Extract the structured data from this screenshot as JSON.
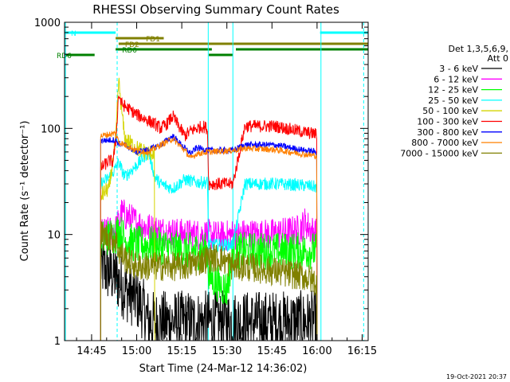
{
  "chart_data": {
    "type": "line",
    "title": "RHESSI Observing Summary Count Rates",
    "xlabel": "Start Time (24-Mar-12 14:36:02)",
    "ylabel": "Count Rate (s⁻¹ detector⁻¹)",
    "y_scale": "log",
    "ylim": [
      1,
      1000
    ],
    "xlim_minutes": [
      0,
      101
    ],
    "x_ticks": [
      {
        "label": "14:45",
        "t": 9
      },
      {
        "label": "15:00",
        "t": 24
      },
      {
        "label": "15:15",
        "t": 39
      },
      {
        "label": "15:30",
        "t": 54
      },
      {
        "label": "15:45",
        "t": 69
      },
      {
        "label": "16:00",
        "t": 84
      },
      {
        "label": "16:15",
        "t": 99
      }
    ],
    "y_ticks": [
      {
        "label": "1",
        "v": 1
      },
      {
        "label": "10",
        "v": 10
      },
      {
        "label": "100",
        "v": 100
      },
      {
        "label": "1000",
        "v": 1000
      }
    ],
    "legend_header": [
      "Det 1,3,5,6,9,",
      "Att 0"
    ],
    "legend_position": "right",
    "timestamp": "19-Oct-2021 20:37",
    "flags": [
      {
        "label": "N",
        "color": "#00ffff",
        "segments": [
          [
            0,
            17
          ],
          [
            85,
            101
          ]
        ],
        "level": 0
      },
      {
        "label": "FD1",
        "color": "#808000",
        "segments": [
          [
            17,
            33
          ]
        ],
        "level": 1
      },
      {
        "label": "FD2",
        "color": "#808000",
        "segments": [
          [
            18,
            101
          ]
        ],
        "level": 2
      },
      {
        "label": "RD0",
        "color": "#008000",
        "segments": [
          [
            17,
            49
          ],
          [
            57,
            101
          ]
        ],
        "level": 3
      },
      {
        "label": "RD6",
        "color": "#008000",
        "segments": [
          [
            0,
            10
          ],
          [
            48,
            56
          ]
        ],
        "level": 4
      }
    ],
    "vlines": [
      {
        "t": 17.5,
        "color": "#00ffff",
        "dashed": true
      },
      {
        "t": 99.5,
        "color": "#00ffff",
        "dashed": true
      },
      {
        "t": 0.3,
        "color": "#00ffff",
        "dashed": false
      },
      {
        "t": 85.3,
        "color": "#00ffff",
        "dashed": false
      },
      {
        "t": 47.8,
        "color": "#00ffff",
        "dashed": false
      },
      {
        "t": 56.0,
        "color": "#00ffff",
        "dashed": false
      }
    ],
    "series": [
      {
        "name": "3 - 6 keV",
        "color": "#000000",
        "noise": 0.3,
        "x": [
          12,
          17,
          20,
          24,
          26,
          28,
          35,
          40,
          48,
          52,
          56,
          60,
          70,
          80,
          84
        ],
        "y": [
          5,
          4,
          3,
          2.5,
          2,
          1.5,
          1.5,
          1.5,
          1.5,
          1.5,
          1.5,
          1.5,
          1.5,
          1.5,
          1.5
        ]
      },
      {
        "name": "6 - 12 keV",
        "color": "#ff00ff",
        "noise": 0.15,
        "x": [
          12,
          17,
          18,
          19,
          22,
          26,
          30,
          40,
          48,
          52,
          56,
          62,
          68,
          74,
          78,
          80,
          82,
          84
        ],
        "y": [
          10,
          11,
          13,
          16,
          14,
          12,
          11,
          10,
          10,
          9.5,
          10,
          10,
          10,
          10.5,
          11,
          13,
          11,
          10
        ]
      },
      {
        "name": "12 - 25 keV",
        "color": "#00ff00",
        "noise": 0.18,
        "x": [
          12,
          17,
          18,
          20,
          24,
          30,
          40,
          47.5,
          48,
          54,
          56,
          60,
          70,
          80,
          84
        ],
        "y": [
          9,
          10,
          11,
          9,
          8,
          8,
          7,
          7,
          4,
          3,
          7,
          7,
          7,
          7,
          7
        ]
      },
      {
        "name": "25 - 50 keV",
        "color": "#00ffff",
        "noise": 0.06,
        "x": [
          12,
          15,
          17,
          18,
          20,
          24,
          28,
          30,
          32,
          36,
          40,
          44,
          47.5,
          48,
          56,
          60,
          70,
          80,
          84
        ],
        "y": [
          30,
          35,
          42,
          48,
          35,
          45,
          60,
          35,
          30,
          27,
          33,
          31,
          31,
          8,
          8,
          30,
          30,
          29,
          28
        ]
      },
      {
        "name": "50 - 100 keV",
        "color": "#d4d400",
        "noise": 0.08,
        "x": [
          12,
          15,
          16,
          17,
          18,
          20,
          24,
          28,
          30
        ],
        "y": [
          23,
          28,
          50,
          75,
          280,
          80,
          65,
          58,
          60
        ]
      },
      {
        "name": "100 - 300 keV",
        "color": "#ff0000",
        "noise": 0.06,
        "x": [
          12,
          15,
          16,
          17,
          18,
          19,
          24,
          30,
          32,
          34,
          36,
          38,
          40,
          42,
          44,
          46,
          47.5,
          48,
          56,
          60,
          70,
          80,
          84
        ],
        "y": [
          42,
          50,
          48,
          72,
          210,
          170,
          135,
          110,
          100,
          110,
          130,
          105,
          85,
          95,
          100,
          105,
          100,
          30,
          30,
          105,
          105,
          92,
          88
        ]
      },
      {
        "name": "300 - 800 keV",
        "color": "#0000ff",
        "noise": 0.03,
        "x": [
          12,
          17,
          18,
          20,
          24,
          28,
          32,
          36,
          40,
          42,
          44,
          48,
          56,
          60,
          70,
          80,
          84
        ],
        "y": [
          77,
          78,
          72,
          70,
          60,
          63,
          70,
          85,
          65,
          58,
          66,
          62,
          62,
          70,
          70,
          62,
          60
        ]
      },
      {
        "name": "800 - 7000 keV",
        "color": "#ff8000",
        "noise": 0.03,
        "x": [
          12,
          17,
          18,
          20,
          24,
          28,
          32,
          36,
          40,
          42,
          44,
          48,
          56,
          60,
          70,
          80,
          84
        ],
        "y": [
          85,
          90,
          75,
          70,
          62,
          60,
          70,
          80,
          62,
          52,
          58,
          60,
          62,
          65,
          63,
          57,
          55
        ]
      },
      {
        "name": "7000 - 15000 keV",
        "color": "#808000",
        "noise": 0.14,
        "x": [
          12,
          17,
          18,
          20,
          24,
          28,
          32,
          36,
          40,
          48,
          52,
          56,
          60,
          70,
          80,
          84
        ],
        "y": [
          10,
          9,
          7,
          6,
          5,
          5,
          5,
          5,
          5,
          6,
          6,
          5,
          5,
          4.5,
          4,
          3.5
        ]
      }
    ]
  }
}
